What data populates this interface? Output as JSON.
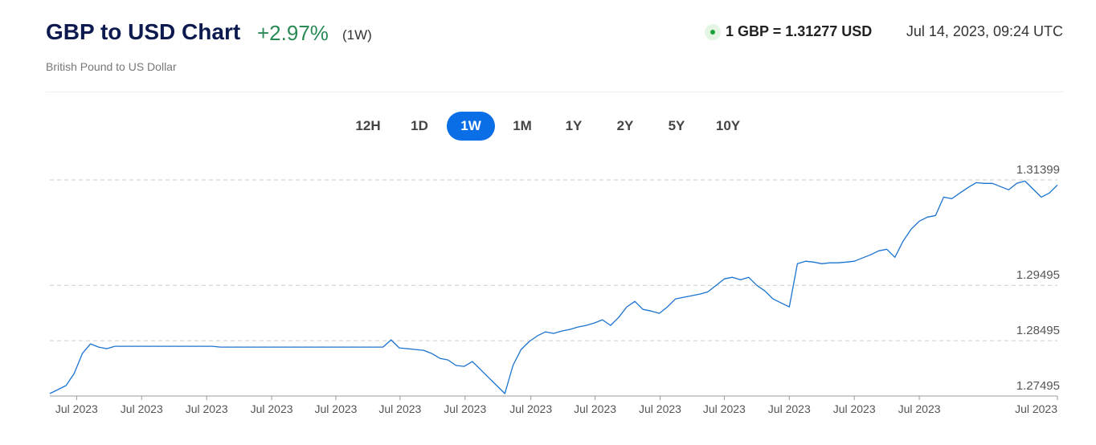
{
  "header": {
    "title": "GBP to USD Chart",
    "change": "+2.97%",
    "period": "(1W)",
    "subtitle": "British Pound to US Dollar",
    "rate": "1 GBP = 1.31277 USD",
    "timestamp": "Jul 14, 2023, 09:24 UTC"
  },
  "tabs": {
    "items": [
      "12H",
      "1D",
      "1W",
      "1M",
      "1Y",
      "2Y",
      "5Y",
      "10Y"
    ],
    "active": 2
  },
  "chart_data": {
    "type": "line",
    "color": "#1a73d0",
    "grid": true,
    "xlim": [
      0,
      124
    ],
    "ylim": [
      1.27495,
      1.31399
    ],
    "yticks": [
      1.27495,
      1.28495,
      1.29495,
      1.31399
    ],
    "xticks": [
      {
        "value": 3.3,
        "label": "Jul 2023"
      },
      {
        "value": 11.3,
        "label": "Jul 2023"
      },
      {
        "value": 19.3,
        "label": "Jul 2023"
      },
      {
        "value": 27.3,
        "label": "Jul 2023"
      },
      {
        "value": 35.2,
        "label": "Jul 2023"
      },
      {
        "value": 43.1,
        "label": "Jul 2023"
      },
      {
        "value": 51.1,
        "label": "Jul 2023"
      },
      {
        "value": 59.2,
        "label": "Jul 2023"
      },
      {
        "value": 67.1,
        "label": "Jul 2023"
      },
      {
        "value": 75.1,
        "label": "Jul 2023"
      },
      {
        "value": 83,
        "label": "Jul 2023"
      },
      {
        "value": 91,
        "label": "Jul 2023"
      },
      {
        "value": 99,
        "label": "Jul 2023"
      },
      {
        "value": 107,
        "label": "Jul 2023"
      },
      {
        "value": 124,
        "label": "Jul 2023"
      }
    ],
    "values": [
      1.27538,
      1.27611,
      1.27683,
      1.27901,
      1.28263,
      1.28437,
      1.28379,
      1.2835,
      1.28394,
      1.28394,
      1.28394,
      1.28394,
      1.28394,
      1.28394,
      1.28394,
      1.28394,
      1.28394,
      1.28394,
      1.28394,
      1.28394,
      1.28394,
      1.28379,
      1.28379,
      1.28379,
      1.28379,
      1.28379,
      1.28379,
      1.28379,
      1.28379,
      1.28379,
      1.28379,
      1.28379,
      1.28379,
      1.28379,
      1.28379,
      1.28379,
      1.28379,
      1.28379,
      1.28379,
      1.28379,
      1.28379,
      1.28379,
      1.28509,
      1.28365,
      1.2835,
      1.28336,
      1.28321,
      1.28263,
      1.28176,
      1.28147,
      1.28046,
      1.28031,
      1.28118,
      1.27973,
      1.27828,
      1.27683,
      1.27538,
      1.28046,
      1.28336,
      1.28481,
      1.28582,
      1.28654,
      1.28625,
      1.28669,
      1.28698,
      1.28741,
      1.2877,
      1.28814,
      1.28872,
      1.2877,
      1.28915,
      1.29104,
      1.29205,
      1.2906,
      1.29031,
      1.28988,
      1.29104,
      1.29249,
      1.29278,
      1.29307,
      1.29336,
      1.29379,
      1.29495,
      1.29611,
      1.2964,
      1.29596,
      1.2964,
      1.29495,
      1.29394,
      1.29249,
      1.29176,
      1.29104,
      1.29886,
      1.2993,
      1.29915,
      1.29886,
      1.29901,
      1.29901,
      1.29915,
      1.2993,
      1.29988,
      1.30046,
      1.30118,
      1.30147,
      1.30002,
      1.30292,
      1.30509,
      1.30654,
      1.30727,
      1.30756,
      1.31089,
      1.3106,
      1.31162,
      1.31263,
      1.3135,
      1.31336,
      1.31336,
      1.31278,
      1.3122,
      1.31336,
      1.31379,
      1.31234,
      1.31089,
      1.31162,
      1.31307
    ]
  }
}
